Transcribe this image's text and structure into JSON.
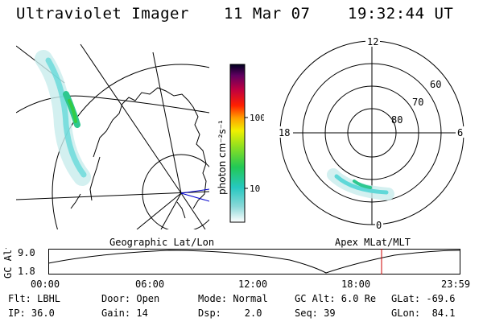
{
  "header": {
    "title": "Ultraviolet Imager",
    "date": "11 Mar 07",
    "time": "19:32:44 UT"
  },
  "colorbar": {
    "unit_label": "photon cm⁻²s⁻¹",
    "ticks": [
      "100",
      "10"
    ]
  },
  "polar": {
    "mlt_labels": [
      "12",
      "18",
      "6",
      "0"
    ],
    "lat_labels": [
      "60",
      "70",
      "80"
    ]
  },
  "panel_labels": {
    "geo": "Geographic Lat/Lon",
    "apex": "Apex MLat/MLT"
  },
  "timeline": {
    "y_label": "GC Alt",
    "y_ticks": [
      "9.0",
      "1.8"
    ],
    "x_ticks": [
      "00:00",
      "06:00",
      "12:00",
      "18:00",
      "23:59"
    ]
  },
  "info": {
    "row1": [
      "Flt: LBHL",
      "Door: Open",
      "Mode: Normal",
      "GC Alt: 6.0 Re",
      "GLat: -69.6"
    ],
    "row2": [
      "IP: 36.0",
      "Gain: 14",
      "Dsp:    2.0",
      "Seq: 39",
      "GLon:  84.1"
    ]
  },
  "colors": {
    "coast": "#000000",
    "marker": "#0000cc",
    "cursor": "#cc0000"
  }
}
